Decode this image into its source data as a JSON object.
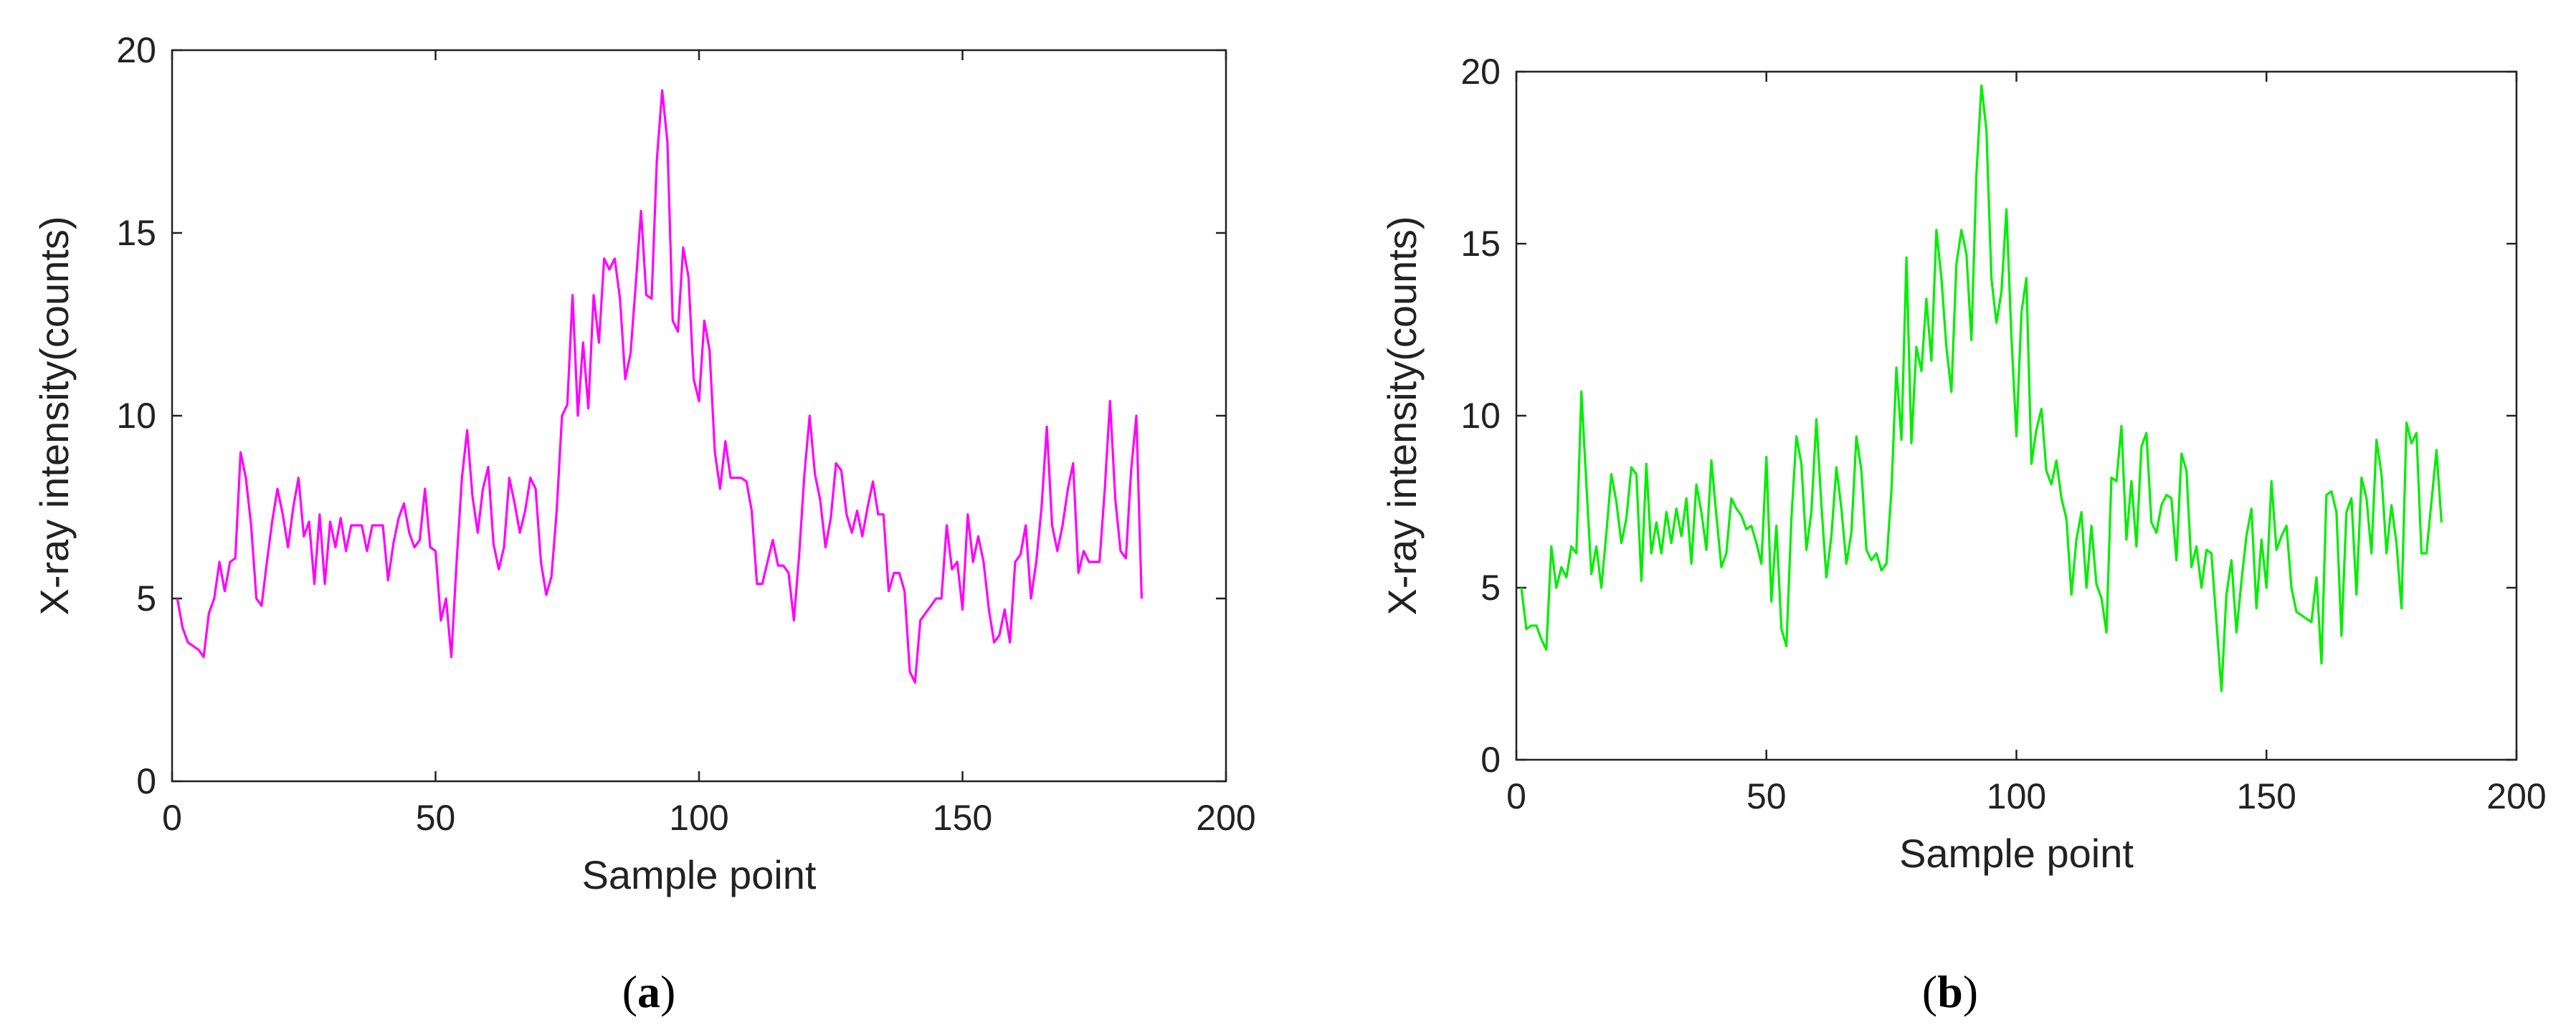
{
  "chart_data": [
    {
      "type": "line",
      "panel_label": "a",
      "xlabel": "Sample point",
      "ylabel": "X-ray intensity(counts)",
      "xlim": [
        0,
        200
      ],
      "ylim": [
        0,
        20
      ],
      "x_ticks": [
        0,
        50,
        100,
        150,
        200
      ],
      "y_ticks": [
        0,
        5,
        10,
        15,
        20
      ],
      "grid": false,
      "color": "#ff00ff",
      "series": [
        {
          "values": [
            5.0,
            4.2,
            3.8,
            3.7,
            3.6,
            3.4,
            4.6,
            5.0,
            6.0,
            5.2,
            6.0,
            6.1,
            9.0,
            8.3,
            7.0,
            5.0,
            4.8,
            6.0,
            7.1,
            8.0,
            7.3,
            6.4,
            7.5,
            8.3,
            6.7,
            7.1,
            5.4,
            7.3,
            5.4,
            7.1,
            6.4,
            7.2,
            6.3,
            7.0,
            7.0,
            7.0,
            6.3,
            7.0,
            7.0,
            7.0,
            5.5,
            6.5,
            7.2,
            7.6,
            6.8,
            6.4,
            6.6,
            8.0,
            6.4,
            6.3,
            4.4,
            5.0,
            3.4,
            6.0,
            8.3,
            9.6,
            7.8,
            6.8,
            8.0,
            8.6,
            6.5,
            5.8,
            6.4,
            8.3,
            7.6,
            6.8,
            7.4,
            8.3,
            8.0,
            6.0,
            5.1,
            5.6,
            7.4,
            10.0,
            10.3,
            13.3,
            10.0,
            12.0,
            10.2,
            13.3,
            12.0,
            14.3,
            14.0,
            14.3,
            13.2,
            11.0,
            11.7,
            13.6,
            15.6,
            13.3,
            13.2,
            17.0,
            18.9,
            17.5,
            12.6,
            12.3,
            14.6,
            13.8,
            11.0,
            10.4,
            12.6,
            11.8,
            9.0,
            8.0,
            9.3,
            8.3,
            8.3,
            8.3,
            8.2,
            7.4,
            5.4,
            5.4,
            6.0,
            6.6,
            5.9,
            5.9,
            5.7,
            4.4,
            6.2,
            8.4,
            10.0,
            8.4,
            7.7,
            6.4,
            7.2,
            8.7,
            8.5,
            7.3,
            6.8,
            7.4,
            6.7,
            7.5,
            8.2,
            7.3,
            7.3,
            5.2,
            5.7,
            5.7,
            5.2,
            3.0,
            2.7,
            4.4,
            4.6,
            4.8,
            5.0,
            5.0,
            7.0,
            5.8,
            6.0,
            4.7,
            7.3,
            6.0,
            6.7,
            6.0,
            4.7,
            3.8,
            4.0,
            4.7,
            3.8,
            6.0,
            6.2,
            7.0,
            5.0,
            6.0,
            7.5,
            9.7,
            7.0,
            6.3,
            7.0,
            8.0,
            8.7,
            5.7,
            6.3,
            6.0,
            6.0,
            6.0,
            8.0,
            10.4,
            7.7,
            6.3,
            6.1,
            8.5,
            10.0,
            5.0
          ]
        }
      ]
    },
    {
      "type": "line",
      "panel_label": "b",
      "xlabel": "Sample point",
      "ylabel": "X-ray intensity(counts)",
      "xlim": [
        0,
        200
      ],
      "ylim": [
        0,
        20
      ],
      "x_ticks": [
        0,
        50,
        100,
        150,
        200
      ],
      "y_ticks": [
        0,
        5,
        10,
        15,
        20
      ],
      "grid": false,
      "color": "#00ee00",
      "series": [
        {
          "values": [
            5.0,
            3.8,
            3.9,
            3.9,
            3.5,
            3.2,
            6.2,
            5.0,
            5.6,
            5.3,
            6.2,
            6.0,
            10.7,
            8.0,
            5.4,
            6.2,
            5.0,
            6.6,
            8.3,
            7.5,
            6.3,
            7.0,
            8.5,
            8.3,
            5.2,
            8.6,
            6.0,
            6.9,
            6.0,
            7.2,
            6.3,
            7.3,
            6.5,
            7.6,
            5.7,
            8.0,
            7.2,
            6.1,
            8.7,
            7.1,
            5.6,
            6.0,
            7.6,
            7.3,
            7.1,
            6.7,
            6.8,
            6.3,
            5.7,
            8.8,
            4.6,
            6.8,
            3.8,
            3.3,
            7.0,
            9.4,
            8.6,
            6.1,
            7.2,
            9.9,
            7.4,
            5.3,
            6.5,
            8.5,
            7.3,
            5.7,
            6.6,
            9.4,
            8.4,
            6.1,
            5.8,
            6.0,
            5.5,
            5.7,
            7.8,
            11.4,
            9.3,
            14.6,
            9.2,
            12.0,
            11.3,
            13.4,
            11.6,
            15.4,
            14.0,
            12.0,
            10.7,
            14.4,
            15.4,
            14.7,
            12.2,
            17.0,
            19.6,
            18.3,
            14.0,
            12.7,
            13.6,
            16.0,
            12.3,
            9.4,
            13.0,
            14.0,
            8.6,
            9.6,
            10.2,
            8.4,
            8.0,
            8.7,
            7.6,
            7.0,
            4.8,
            6.4,
            7.2,
            5.0,
            6.8,
            5.1,
            4.7,
            3.7,
            8.2,
            8.1,
            9.7,
            6.4,
            8.1,
            6.2,
            9.1,
            9.5,
            6.9,
            6.6,
            7.4,
            7.7,
            7.6,
            5.8,
            8.9,
            8.4,
            5.6,
            6.2,
            5.0,
            6.1,
            6.0,
            4.0,
            2.0,
            4.8,
            5.8,
            3.7,
            5.2,
            6.5,
            7.3,
            4.4,
            6.4,
            5.0,
            8.1,
            6.1,
            6.5,
            6.8,
            5.0,
            4.3,
            4.2,
            4.1,
            4.0,
            5.3,
            2.8,
            7.7,
            7.8,
            7.2,
            3.6,
            7.2,
            7.6,
            4.8,
            8.2,
            7.6,
            6.0,
            9.3,
            8.3,
            6.0,
            7.4,
            6.3,
            4.4,
            9.8,
            9.2,
            9.5,
            6.0,
            6.0,
            7.5,
            9.0,
            6.9
          ]
        }
      ]
    }
  ]
}
